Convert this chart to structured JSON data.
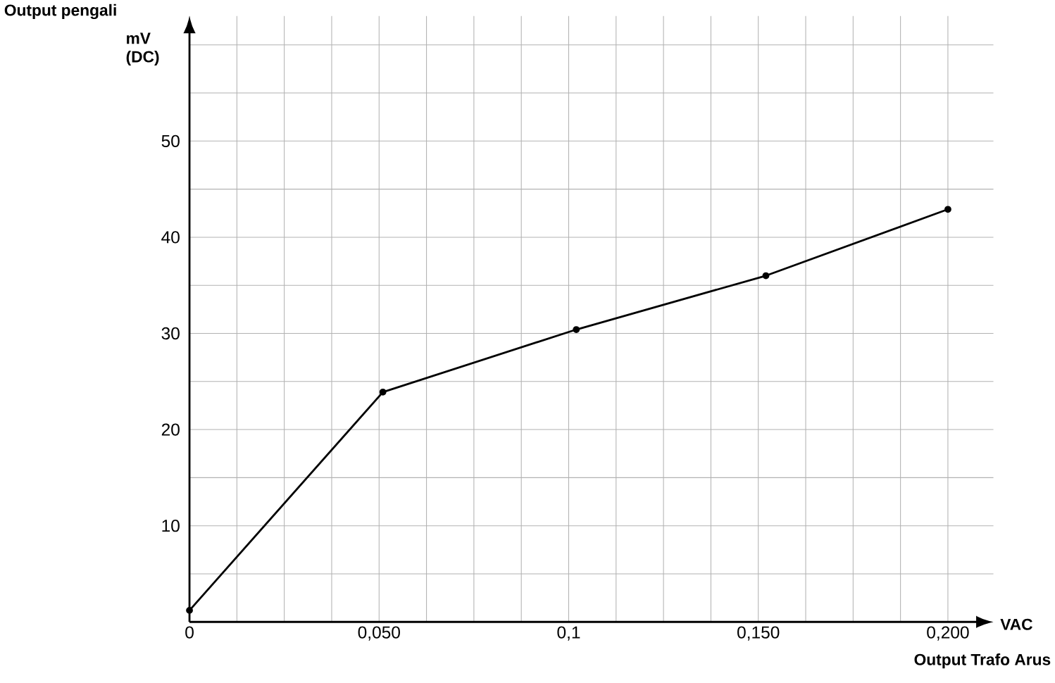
{
  "chart_data": {
    "type": "line",
    "xlabel": "Output Trafo Arus",
    "ylabel": "Output pengali",
    "annotations": [
      "mV (DC)",
      "VAC"
    ],
    "x": [
      0,
      0.051,
      0.102,
      0.152,
      0.2
    ],
    "series": [
      {
        "color": "#000000",
        "values": [
          1.2,
          23.9,
          30.4,
          36,
          42.9
        ]
      }
    ],
    "xlim": [
      0,
      0.212
    ],
    "ylim": [
      0,
      63
    ],
    "xticks": [
      {
        "value": 0,
        "label": "0"
      },
      {
        "value": 0.0125,
        "label": null
      },
      {
        "value": 0.025,
        "label": null
      },
      {
        "value": 0.0375,
        "label": null
      },
      {
        "value": 0.05,
        "label": "0,050"
      },
      {
        "value": 0.0625,
        "label": null
      },
      {
        "value": 0.075,
        "label": null
      },
      {
        "value": 0.0875,
        "label": null
      },
      {
        "value": 0.1,
        "label": "0,1"
      },
      {
        "value": 0.1125,
        "label": null
      },
      {
        "value": 0.125,
        "label": null
      },
      {
        "value": 0.1375,
        "label": null
      },
      {
        "value": 0.15,
        "label": "0,150"
      },
      {
        "value": 0.1625,
        "label": null
      },
      {
        "value": 0.175,
        "label": null
      },
      {
        "value": 0.1875,
        "label": null
      },
      {
        "value": 0.2,
        "label": "0,200"
      }
    ],
    "yticks": [
      {
        "value": 5,
        "label": null
      },
      10,
      {
        "value": 15,
        "label": null
      },
      20,
      {
        "value": 25,
        "label": null
      },
      30,
      {
        "value": 35,
        "label": null
      },
      40,
      {
        "value": 45,
        "label": null
      },
      50,
      {
        "value": 55,
        "label": null
      },
      {
        "value": 60,
        "label": null
      }
    ],
    "grid": true,
    "marker": "circle",
    "line_style": "solid"
  }
}
